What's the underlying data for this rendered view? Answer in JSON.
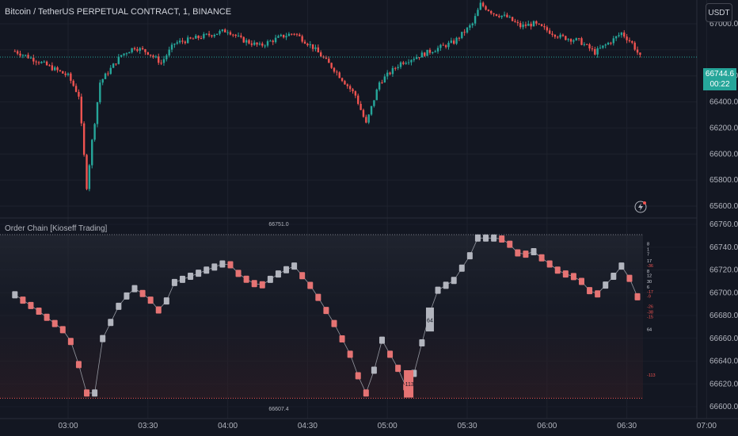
{
  "header": {
    "title": "Bitcoin / TetherUS PERPETUAL CONTRACT, 1, BINANCE",
    "currency_button": "USDT"
  },
  "price_tag": {
    "price": "66744.6",
    "countdown": "00:22"
  },
  "indicator": {
    "title": "Order Chain [Kioseff Trading]",
    "high_label": "66751.0",
    "low_label": "66607.4"
  },
  "colors": {
    "background": "#131722",
    "up": "#26a69a",
    "down": "#ef5350",
    "chain_up_box": "#b2b5be",
    "chain_down_box": "#e57373",
    "grid": "#1e222d",
    "text": "#b2b5be"
  },
  "chart_data": [
    {
      "type": "candlestick",
      "title": "Bitcoin / TetherUS PERPETUAL CONTRACT, 1, BINANCE",
      "y_axis": {
        "min": 65500,
        "max": 67200,
        "ticks": [
          65600,
          65800,
          66000,
          66200,
          66400,
          66600,
          66800,
          67000
        ]
      },
      "x_axis": {
        "tick_labels": [
          "03:00",
          "03:30",
          "04:00",
          "04:30",
          "05:00",
          "05:30",
          "06:00",
          "06:30",
          "07:00"
        ]
      },
      "close_path": [
        [
          "02:40",
          66790
        ],
        [
          "02:48",
          66720
        ],
        [
          "02:55",
          66650
        ],
        [
          "03:00",
          66600
        ],
        [
          "03:04",
          66450
        ],
        [
          "03:07",
          65750
        ],
        [
          "03:09",
          66100
        ],
        [
          "03:12",
          66550
        ],
        [
          "03:20",
          66760
        ],
        [
          "03:25",
          66820
        ],
        [
          "03:30",
          66780
        ],
        [
          "03:35",
          66700
        ],
        [
          "03:40",
          66850
        ],
        [
          "03:50",
          66900
        ],
        [
          "04:00",
          66950
        ],
        [
          "04:05",
          66880
        ],
        [
          "04:12",
          66830
        ],
        [
          "04:20",
          66900
        ],
        [
          "04:25",
          66930
        ],
        [
          "04:32",
          66820
        ],
        [
          "04:40",
          66650
        ],
        [
          "04:48",
          66450
        ],
        [
          "04:52",
          66230
        ],
        [
          "04:57",
          66550
        ],
        [
          "05:05",
          66700
        ],
        [
          "05:15",
          66780
        ],
        [
          "05:25",
          66860
        ],
        [
          "05:32",
          67000
        ],
        [
          "05:35",
          67150
        ],
        [
          "05:40",
          67080
        ],
        [
          "05:45",
          67050
        ],
        [
          "05:50",
          66980
        ],
        [
          "05:55",
          67000
        ],
        [
          "06:00",
          66950
        ],
        [
          "06:05",
          66900
        ],
        [
          "06:12",
          66870
        ],
        [
          "06:18",
          66780
        ],
        [
          "06:25",
          66880
        ],
        [
          "06:28",
          66930
        ],
        [
          "06:32",
          66850
        ],
        [
          "06:35",
          66745
        ]
      ],
      "last_price": 66744.6
    },
    {
      "type": "line",
      "title": "Order Chain [Kioseff Trading]",
      "y_axis": {
        "min": 66600,
        "max": 66760,
        "ticks": [
          66600,
          66620,
          66640,
          66660,
          66680,
          66700,
          66720,
          66740,
          66760
        ]
      },
      "highest": 66751.0,
      "lowest": 66607.4,
      "chain_labels": [
        "-113",
        "64"
      ],
      "right_levels": [
        "8",
        "1",
        "7",
        "17",
        "-36",
        "8",
        "12",
        "30",
        "6",
        "-17",
        "-9",
        "-26",
        "-38",
        "-15",
        "64",
        "-113"
      ]
    }
  ]
}
